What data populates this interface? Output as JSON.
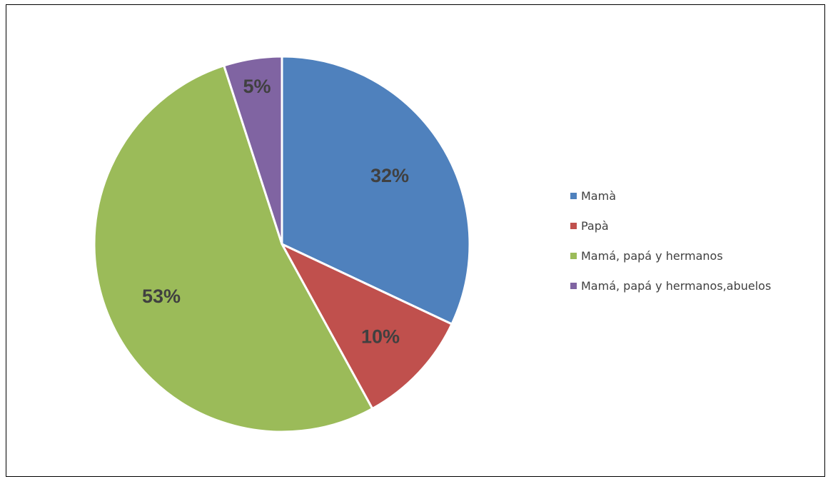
{
  "chart_data": {
    "type": "pie",
    "title": "",
    "legend_position": "right",
    "slices": [
      {
        "label": "Mamà",
        "value": 32,
        "display": "32%",
        "color": "#4F81BD"
      },
      {
        "label": "Papà",
        "value": 10,
        "display": "10%",
        "color": "#C0504D"
      },
      {
        "label": "Mamá, papá y hermanos",
        "value": 53,
        "display": "53%",
        "color": "#9BBB59"
      },
      {
        "label": "Mamá, papá y hermanos,abuelos",
        "value": 5,
        "display": "5%",
        "color": "#8064A2"
      }
    ]
  }
}
